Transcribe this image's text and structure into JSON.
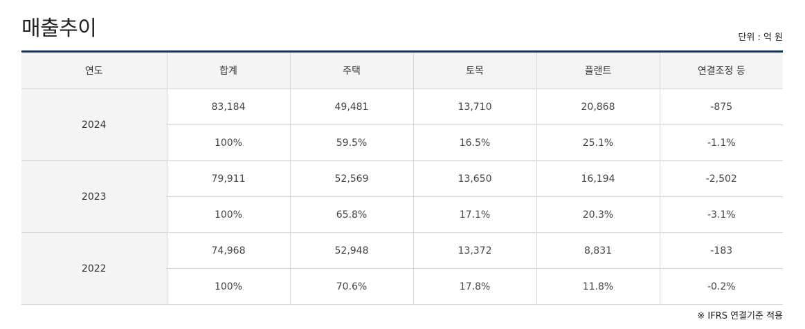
{
  "title": "매출추이",
  "unit": "단위 : 억 원",
  "table": {
    "headers": [
      "연도",
      "합계",
      "주택",
      "토목",
      "플랜트",
      "연결조정 등"
    ],
    "years": [
      {
        "year": "2024",
        "amount_row": [
          "83,184",
          "49,481",
          "13,710",
          "20,868",
          "-875"
        ],
        "ratio_row": [
          "100%",
          "59.5%",
          "16.5%",
          "25.1%",
          "-1.1%"
        ]
      },
      {
        "year": "2023",
        "amount_row": [
          "79,911",
          "52,569",
          "13,650",
          "16,194",
          "-2,502"
        ],
        "ratio_row": [
          "100%",
          "65.8%",
          "17.1%",
          "20.3%",
          "-3.1%"
        ]
      },
      {
        "year": "2022",
        "amount_row": [
          "74,968",
          "52,948",
          "13,372",
          "8,831",
          "-183"
        ],
        "ratio_row": [
          "100%",
          "70.6%",
          "17.8%",
          "11.8%",
          "-0.2%"
        ]
      }
    ]
  },
  "footnote": "※ IFRS 연결기준 적용"
}
